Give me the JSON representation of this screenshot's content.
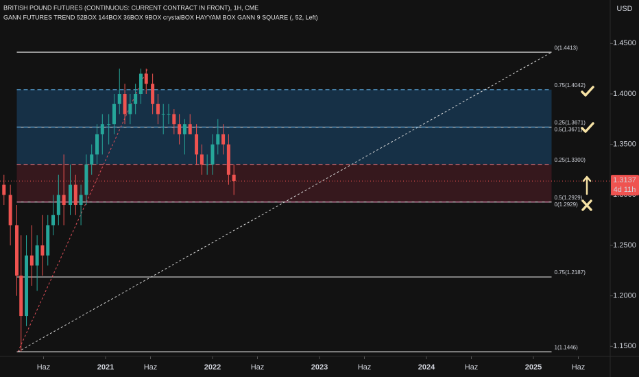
{
  "chart_data": {
    "type": "candlestick",
    "title": "BRITISH POUND FUTURES (CONTINUOUS: CURRENT CONTRACT IN FRONT), 1H, CME",
    "subtitle": "GANN FUTURES TREND 52BOX 144BOX 36BOX 9BOX crystalBOX HAYYAM BOX GANN 9 SQUARE (, 52, Left)",
    "currency": "USD",
    "up_color": "#26a69a",
    "down_color": "#ef5350",
    "xlim": [
      2020.013,
      2025.718
    ],
    "ylim": [
      1.14,
      1.493
    ],
    "xticks": [
      {
        "value": 2020.42,
        "label": "Haz"
      },
      {
        "value": 2021,
        "label": "2021"
      },
      {
        "value": 2021.42,
        "label": "Haz"
      },
      {
        "value": 2022,
        "label": "2022"
      },
      {
        "value": 2022.42,
        "label": "Haz"
      },
      {
        "value": 2023,
        "label": "2023"
      },
      {
        "value": 2023.42,
        "label": "Haz"
      },
      {
        "value": 2024,
        "label": "2024"
      },
      {
        "value": 2024.42,
        "label": "Haz"
      },
      {
        "value": 2025,
        "label": "2025"
      },
      {
        "value": 2025.42,
        "label": "Haz"
      }
    ],
    "yticks": [
      {
        "value": 1.45,
        "label": "1.4500"
      },
      {
        "value": 1.4,
        "label": "1.4000"
      },
      {
        "value": 1.35,
        "label": "1.3500"
      },
      {
        "value": 1.3,
        "label": "1.3000"
      },
      {
        "value": 1.25,
        "label": "1.2500"
      },
      {
        "value": 1.2,
        "label": "1.2000"
      },
      {
        "value": 1.15,
        "label": "1.1500"
      }
    ],
    "x": [
      2020.05,
      2020.11,
      2020.17,
      2020.21,
      2020.26,
      2020.31,
      2020.36,
      2020.41,
      2020.46,
      2020.51,
      2020.56,
      2020.61,
      2020.67,
      2020.72,
      2020.77,
      2020.82,
      2020.87,
      2020.92,
      2020.97,
      2021.03,
      2021.08,
      2021.13,
      2021.18,
      2021.23,
      2021.28,
      2021.33,
      2021.38,
      2021.44,
      2021.49,
      2021.54,
      2021.59,
      2021.64,
      2021.69,
      2021.74,
      2021.79,
      2021.85,
      2021.9,
      2021.95,
      2022.0,
      2022.05,
      2022.1,
      2022.15,
      2022.2
    ],
    "open": [
      1.31,
      1.3,
      1.27,
      1.22,
      1.18,
      1.24,
      1.23,
      1.25,
      1.24,
      1.27,
      1.28,
      1.3,
      1.29,
      1.31,
      1.29,
      1.3,
      1.33,
      1.34,
      1.36,
      1.37,
      1.37,
      1.39,
      1.4,
      1.38,
      1.39,
      1.4,
      1.42,
      1.41,
      1.39,
      1.38,
      1.38,
      1.38,
      1.37,
      1.36,
      1.37,
      1.36,
      1.34,
      1.33,
      1.33,
      1.35,
      1.36,
      1.35,
      1.32
    ],
    "high": [
      1.32,
      1.31,
      1.29,
      1.26,
      1.26,
      1.27,
      1.26,
      1.28,
      1.28,
      1.3,
      1.32,
      1.34,
      1.33,
      1.32,
      1.31,
      1.34,
      1.35,
      1.37,
      1.38,
      1.38,
      1.4,
      1.425,
      1.41,
      1.4,
      1.41,
      1.425,
      1.425,
      1.42,
      1.4,
      1.39,
      1.39,
      1.385,
      1.38,
      1.375,
      1.38,
      1.37,
      1.35,
      1.34,
      1.36,
      1.375,
      1.37,
      1.36,
      1.33
    ],
    "low": [
      1.29,
      1.25,
      1.2,
      1.145,
      1.17,
      1.21,
      1.205,
      1.22,
      1.23,
      1.26,
      1.27,
      1.27,
      1.28,
      1.28,
      1.27,
      1.29,
      1.32,
      1.33,
      1.34,
      1.35,
      1.36,
      1.38,
      1.37,
      1.37,
      1.38,
      1.39,
      1.4,
      1.38,
      1.37,
      1.36,
      1.37,
      1.36,
      1.35,
      1.34,
      1.36,
      1.33,
      1.32,
      1.32,
      1.32,
      1.34,
      1.34,
      1.31,
      1.3
    ],
    "close": [
      1.3,
      1.27,
      1.22,
      1.18,
      1.24,
      1.23,
      1.25,
      1.24,
      1.27,
      1.28,
      1.3,
      1.29,
      1.31,
      1.29,
      1.3,
      1.33,
      1.34,
      1.36,
      1.37,
      1.37,
      1.39,
      1.4,
      1.38,
      1.39,
      1.4,
      1.42,
      1.41,
      1.39,
      1.38,
      1.38,
      1.38,
      1.37,
      1.36,
      1.37,
      1.36,
      1.34,
      1.33,
      1.33,
      1.35,
      1.36,
      1.35,
      1.32,
      1.3137
    ],
    "zones": [
      {
        "from": 1.4042,
        "to": 1.33,
        "x0": 2020.17,
        "x1": 2025.17,
        "color": "#173650"
      },
      {
        "from": 1.33,
        "to": 1.2929,
        "x0": 2020.17,
        "x1": 2025.17,
        "color": "#3d1a20"
      }
    ],
    "levels": [
      {
        "value": 1.4413,
        "label": "0(1.4413)",
        "color": "#d8d8d8",
        "dashed": false
      },
      {
        "value": 1.4042,
        "label": "0.75(1.4042)",
        "color": "#5ba7dc",
        "dashed": true
      },
      {
        "value": 1.3671,
        "label": "0.25(1.3671)",
        "color": "#d8d8d8",
        "dashed": false
      },
      {
        "value": 1.3671,
        "label": "0.5(1.3671)",
        "color": "#5ba7dc",
        "dashed": true
      },
      {
        "value": 1.33,
        "label": "0.25(1.3300)",
        "color": "#e06b72",
        "dashed": true
      },
      {
        "value": 1.2929,
        "label": "0.5(1.2929)",
        "color": "#d8d8d8",
        "dashed": false
      },
      {
        "value": 1.2929,
        "label": "0(1.2929)",
        "color": "#c9739a",
        "dashed": true
      },
      {
        "value": 1.2187,
        "label": "0.75(1.2187)",
        "color": "#d8d8d8",
        "dashed": false
      },
      {
        "value": 1.1446,
        "label": "1(1.1446)",
        "color": "#d8d8d8",
        "dashed": false
      }
    ],
    "level_x": [
      2020.17,
      2025.17
    ],
    "trendlines": [
      {
        "x": [
          2020.18,
          2025.17
        ],
        "y": [
          1.1446,
          1.4413
        ],
        "color": "#d8d8d8"
      },
      {
        "x": [
          2020.18,
          2021.39
        ],
        "y": [
          1.1446,
          1.4245
        ],
        "color": "#e0505a"
      }
    ],
    "last_price": 1.3137,
    "countdown": "4d 11h"
  }
}
